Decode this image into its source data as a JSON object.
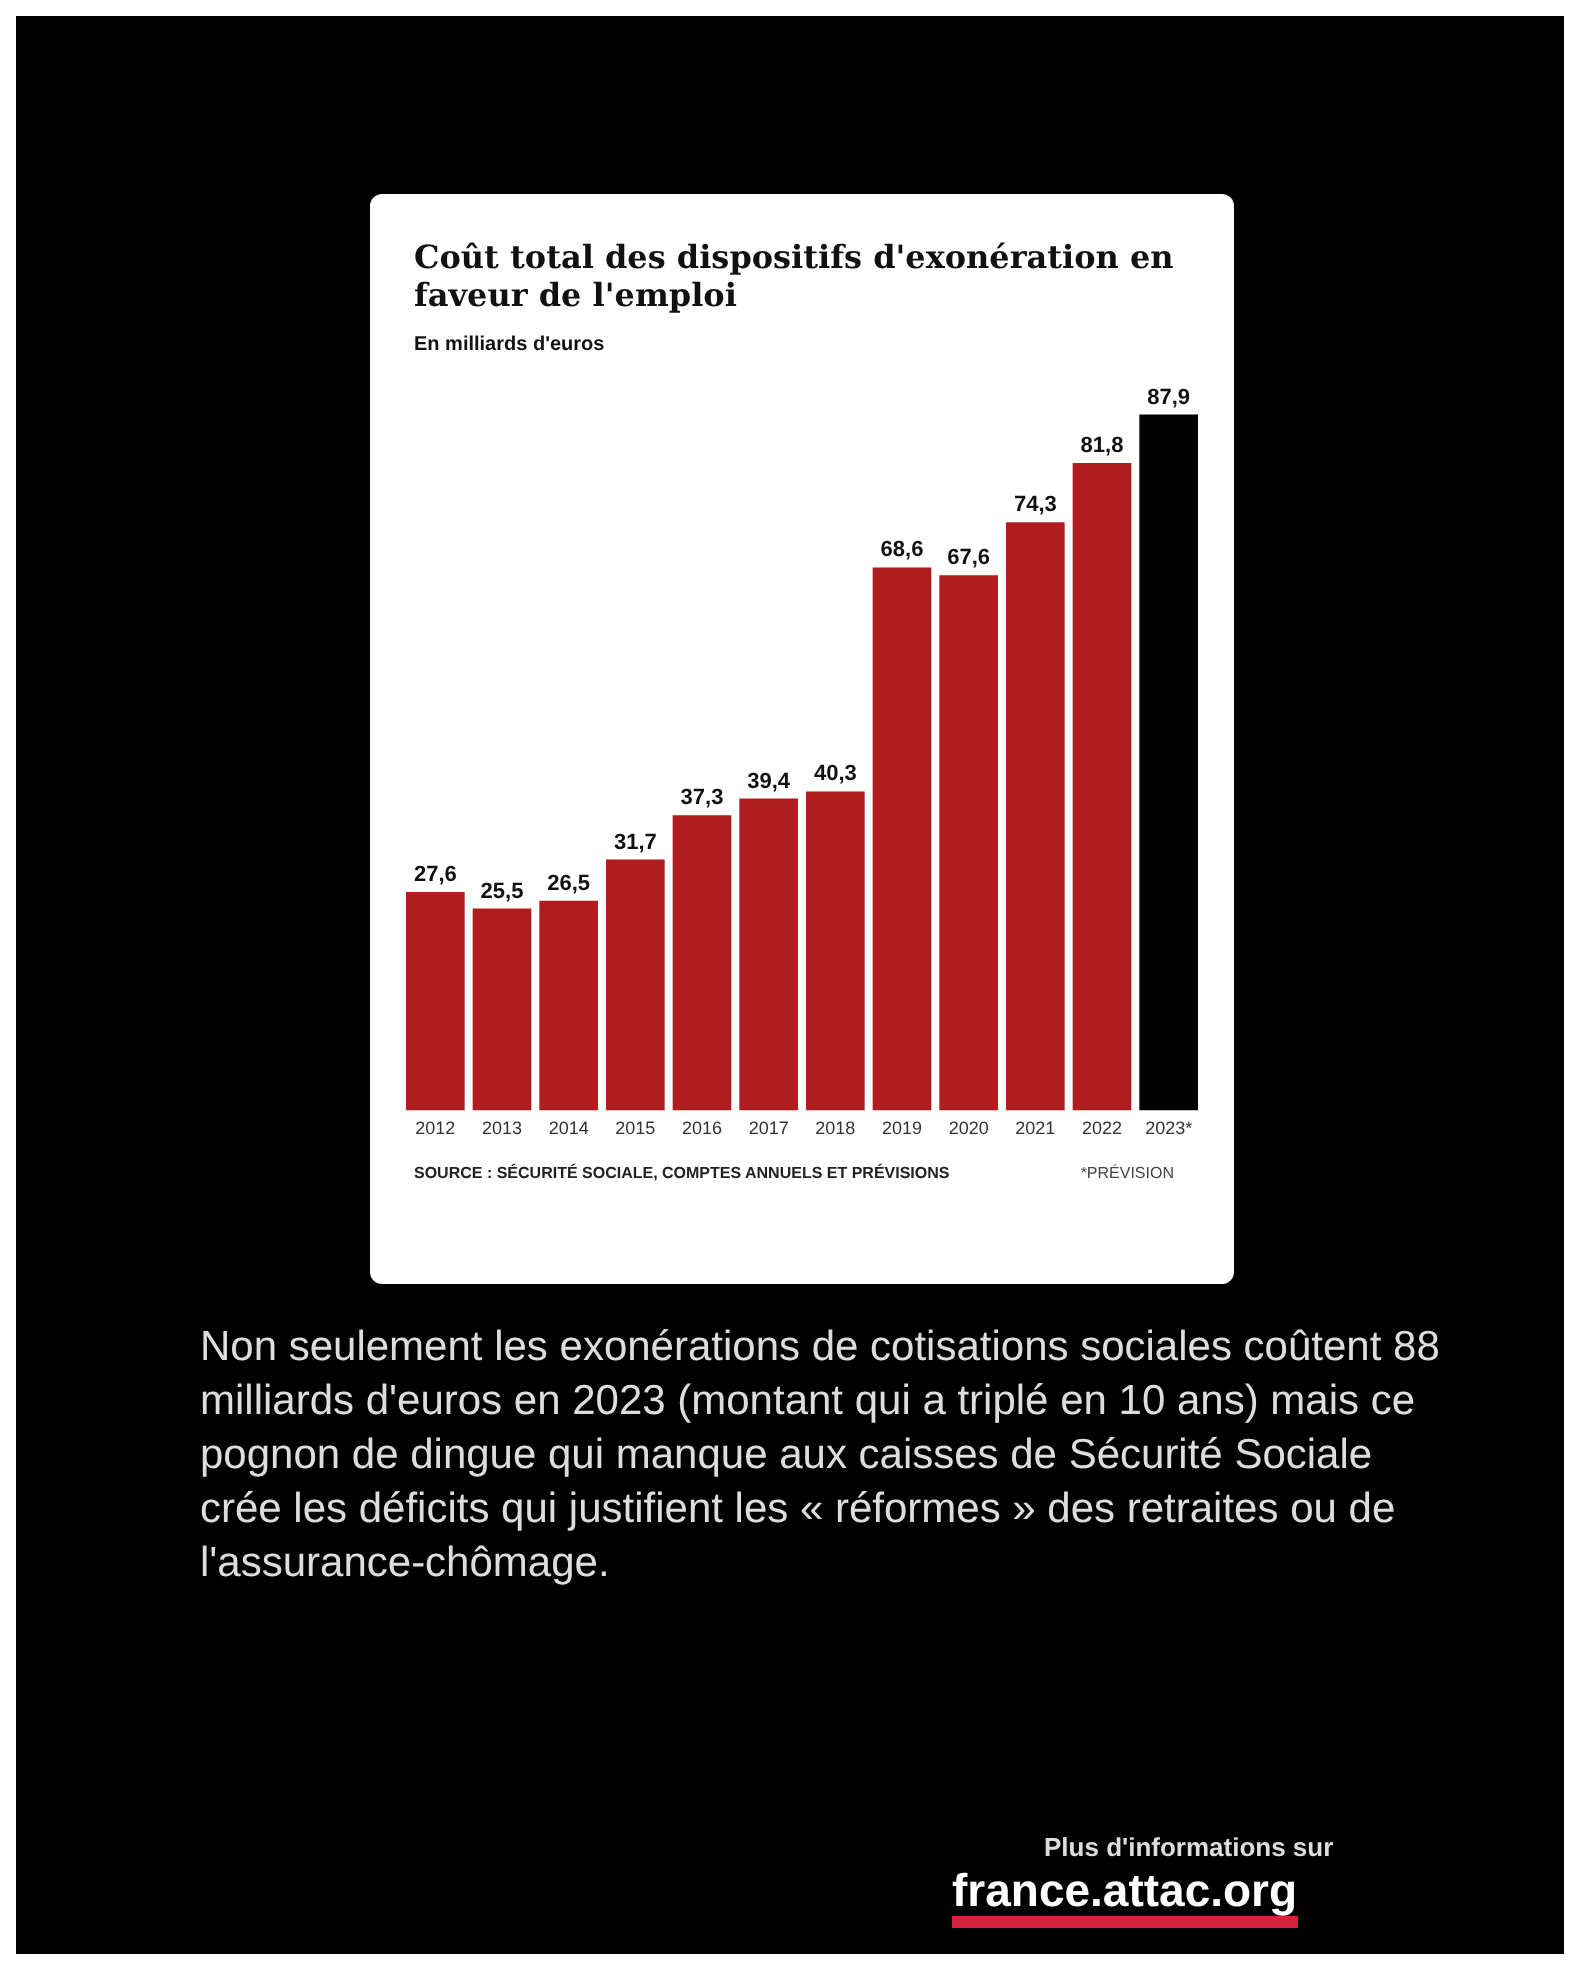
{
  "chart_data": {
    "type": "bar",
    "title": "Coût total des dispositifs d'exonération en faveur de l'emploi",
    "subtitle": "En milliards d'euros",
    "categories": [
      "2012",
      "2013",
      "2014",
      "2015",
      "2016",
      "2017",
      "2018",
      "2019",
      "2020",
      "2021",
      "2022",
      "2023*"
    ],
    "values": [
      27.6,
      25.5,
      26.5,
      31.7,
      37.3,
      39.4,
      40.3,
      68.6,
      67.6,
      74.3,
      81.8,
      87.9
    ],
    "value_labels": [
      "27,6",
      "25,5",
      "26,5",
      "31,7",
      "37,3",
      "39,4",
      "40,3",
      "68,6",
      "67,6",
      "74,3",
      "81,8",
      "87,9"
    ],
    "colors": [
      "#b01d1f",
      "#b01d1f",
      "#b01d1f",
      "#b01d1f",
      "#b01d1f",
      "#b01d1f",
      "#b01d1f",
      "#b01d1f",
      "#b01d1f",
      "#b01d1f",
      "#b01d1f",
      "#000000"
    ],
    "grid": false,
    "legend": false,
    "annotations": [
      "SOURCE : SÉCURITÉ SOCIALE, COMPTES ANNUELS ET PRÉVISIONS",
      "*PRÉVISION",
      "Non seulement les exonérations de cotisations sociales coûtent 88 milliards d'euros en 2023 (montant qui a triplé en 10 ans) mais ce pognon de dingue qui manque aux caisses de Sécurité Sociale crée les déficits qui justifient les « réformes » des retraites ou de l'assurance-chômage.",
      "Plus d'informations sur",
      "france.attac.org"
    ]
  }
}
